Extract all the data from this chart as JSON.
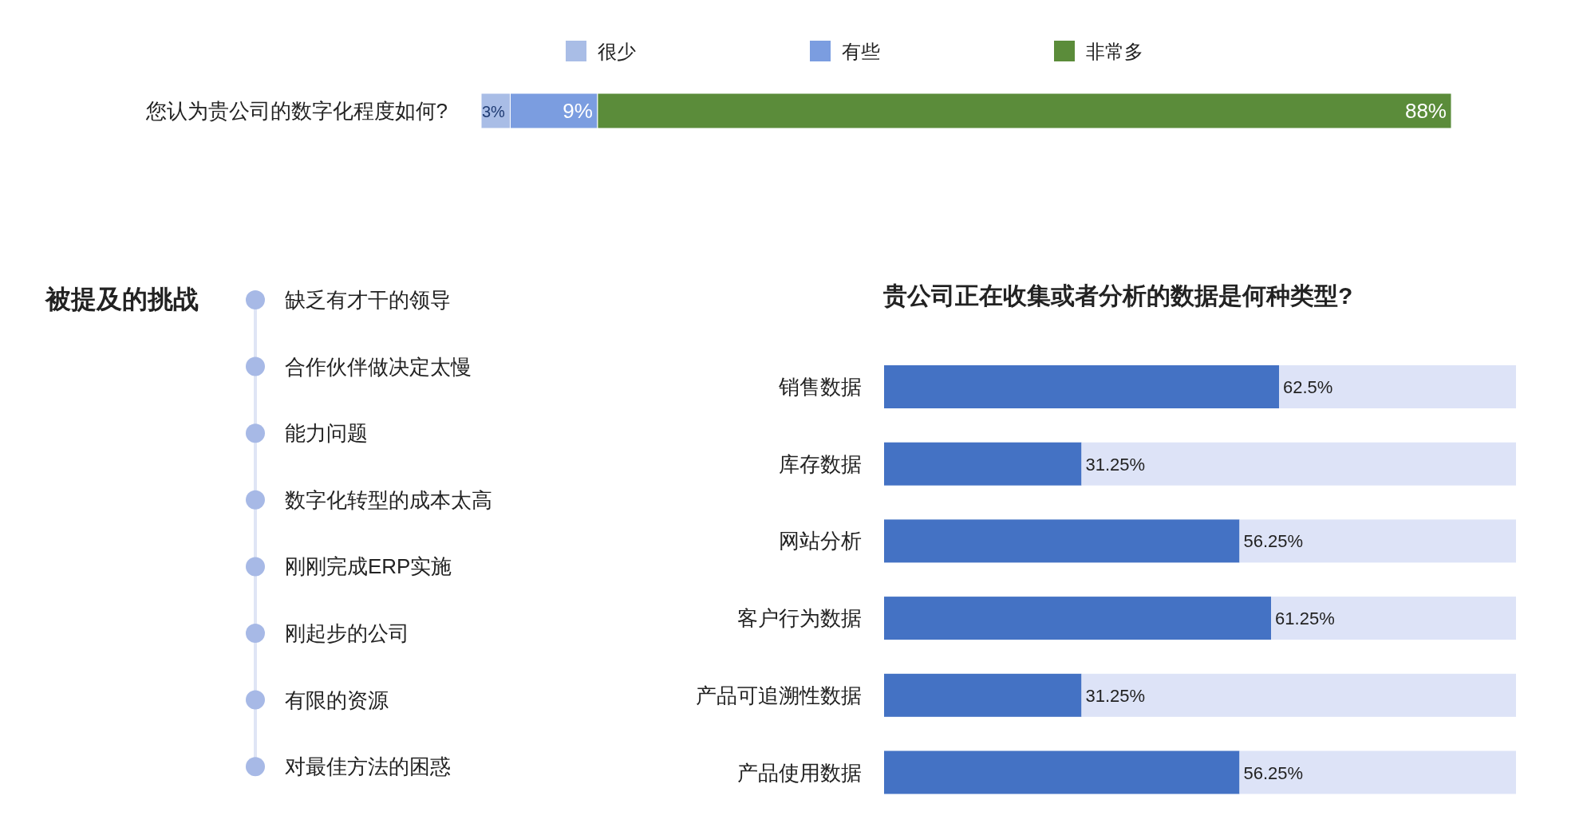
{
  "chart_data": [
    {
      "type": "bar",
      "orientation": "horizontal",
      "stacked": true,
      "categories": [
        "您认为贵公司的数字化程度如何?"
      ],
      "xlim": [
        0,
        100
      ],
      "tick_labels": "y",
      "legend": "top",
      "series": [
        {
          "name": "很少",
          "color": "#a9bde6",
          "values": [
            3
          ],
          "value_labels": [
            "3%"
          ]
        },
        {
          "name": "有些",
          "color": "#7b9de0",
          "values": [
            9
          ],
          "value_labels": [
            "9%"
          ]
        },
        {
          "name": "非常多",
          "color": "#5b8c3a",
          "values": [
            88
          ],
          "value_labels": [
            "88%"
          ]
        }
      ]
    },
    {
      "type": "other",
      "title": "被提及的挑战",
      "annotations": [
        "缺乏有才干的领导",
        "合作伙伴做决定太慢",
        "能力问题",
        "数字化转型的成本太高",
        "刚刚完成ERP实施",
        "刚起步的公司",
        "有限的资源",
        "对最佳方法的困惑"
      ]
    },
    {
      "type": "bar",
      "orientation": "horizontal",
      "stacked": true,
      "title": "贵公司正在收集或者分析的数据是何种类型?",
      "categories": [
        "销售数据",
        "库存数据",
        "网站分析",
        "客户行为数据",
        "产品可追溯性数据",
        "产品使用数据"
      ],
      "xlim": [
        0,
        100
      ],
      "tick_labels": "y",
      "series": [
        {
          "color": "#4472c4",
          "values": [
            62.5,
            31.25,
            56.25,
            61.25,
            31.25,
            56.25
          ],
          "value_labels": [
            "62.5%",
            "31.25%",
            "56.25%",
            "61.25%",
            "31.25%",
            "56.25%"
          ]
        },
        {
          "color": "#dde3f7",
          "values": [
            37.5,
            68.75,
            43.75,
            38.75,
            68.75,
            43.75
          ]
        }
      ]
    }
  ]
}
